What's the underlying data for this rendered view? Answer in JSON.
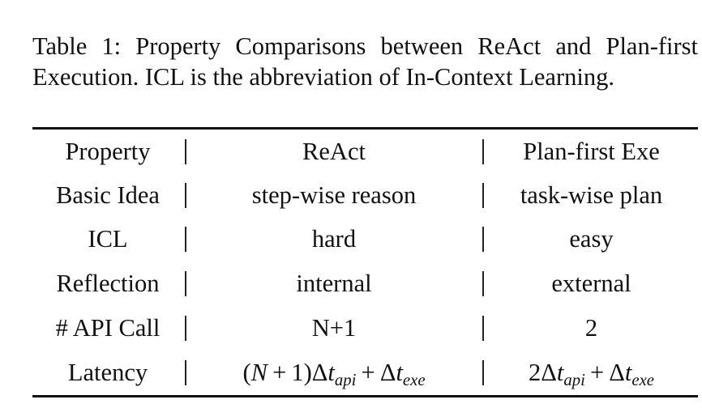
{
  "caption": "Table 1: Property Comparisons between ReAct and Plan-first Execution. ICL is the abbreviation of In-Context Learning.",
  "table": {
    "header": {
      "property": "Property",
      "react": "ReAct",
      "planfirst": "Plan-first Exe"
    },
    "rows": [
      {
        "property": "Basic Idea",
        "react": "step-wise reason",
        "planfirst": "task-wise plan"
      },
      {
        "property": "ICL",
        "react": "hard",
        "planfirst": "easy"
      },
      {
        "property": "Reflection",
        "react": "internal",
        "planfirst": "external"
      },
      {
        "property": "# API Call",
        "react": "N+1",
        "planfirst": "2"
      },
      {
        "property": "Latency",
        "react": "(N + 1)Δt_api + Δt_exe",
        "planfirst": "2Δt_api + Δt_exe"
      }
    ]
  }
}
